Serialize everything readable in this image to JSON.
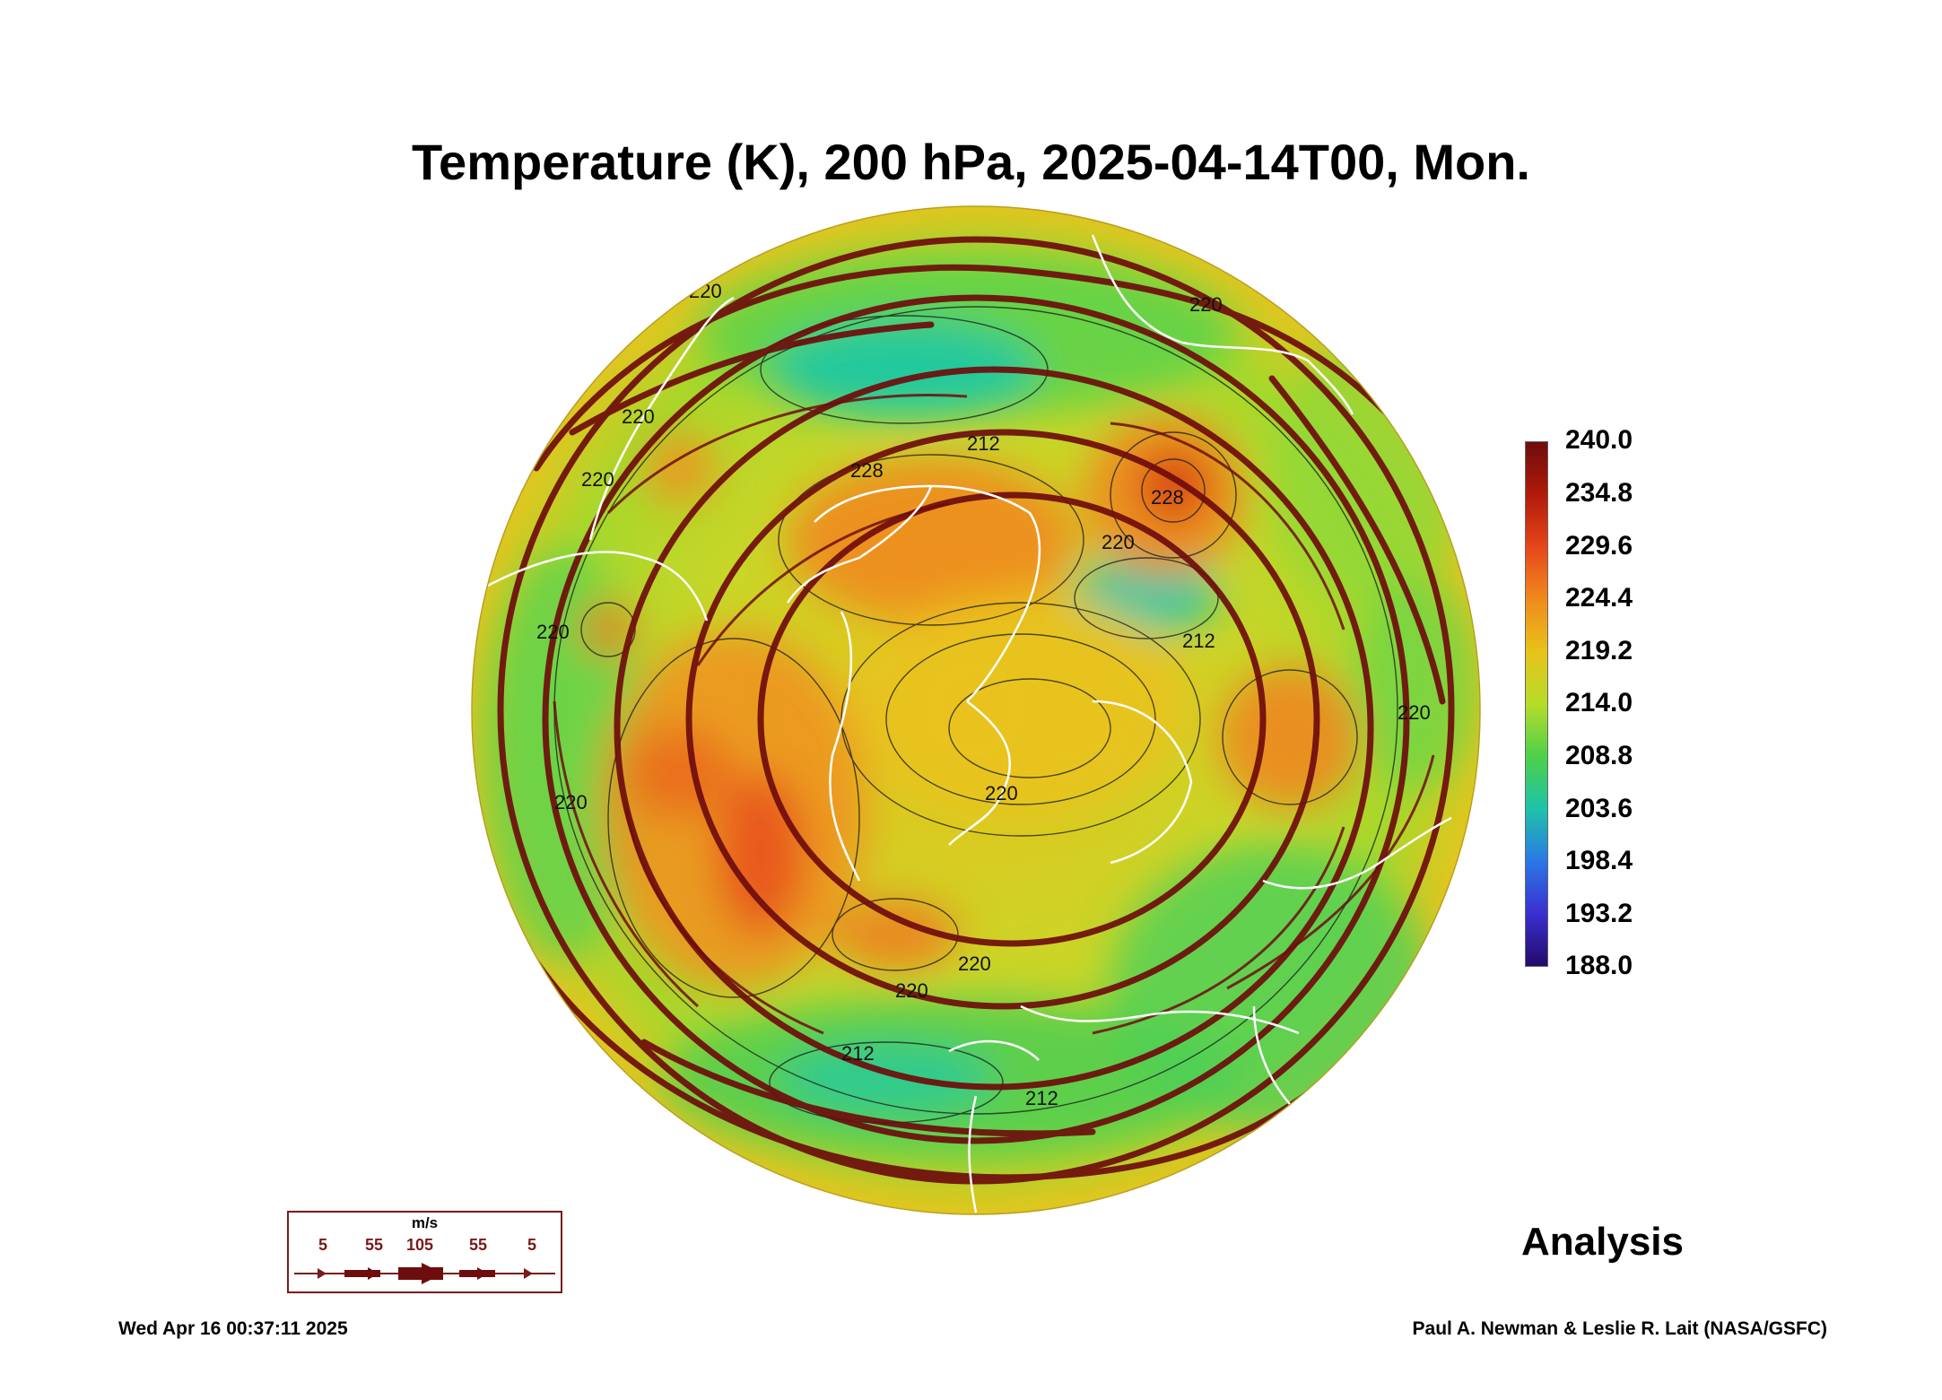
{
  "title": "Temperature (K), 200 hPa, 2025-04-14T00, Mon.",
  "colorbar": {
    "labels": [
      "240.0",
      "234.8",
      "229.6",
      "224.4",
      "219.2",
      "214.0",
      "208.8",
      "203.6",
      "198.4",
      "193.2",
      "188.0"
    ],
    "colors": [
      "#6e0d0d",
      "#b01a0a",
      "#e8461a",
      "#f08a1c",
      "#e7c31a",
      "#b6dc2a",
      "#4ed04a",
      "#1dc3a8",
      "#2a78e6",
      "#3a2fd0",
      "#240a6a"
    ]
  },
  "contour_labels": [
    "220",
    "220",
    "220",
    "220",
    "220",
    "220",
    "220",
    "212",
    "212",
    "212",
    "228",
    "228",
    "220",
    "220",
    "220",
    "220",
    "212"
  ],
  "wind_legend": {
    "unit": "m/s",
    "values": [
      "5",
      "55",
      "105",
      "55",
      "5"
    ]
  },
  "analysis_label": "Analysis",
  "timestamp": "Wed Apr 16 00:37:11 2025",
  "credit": "Paul A. Newman & Leslie R. Lait (NASA/GSFC)"
}
